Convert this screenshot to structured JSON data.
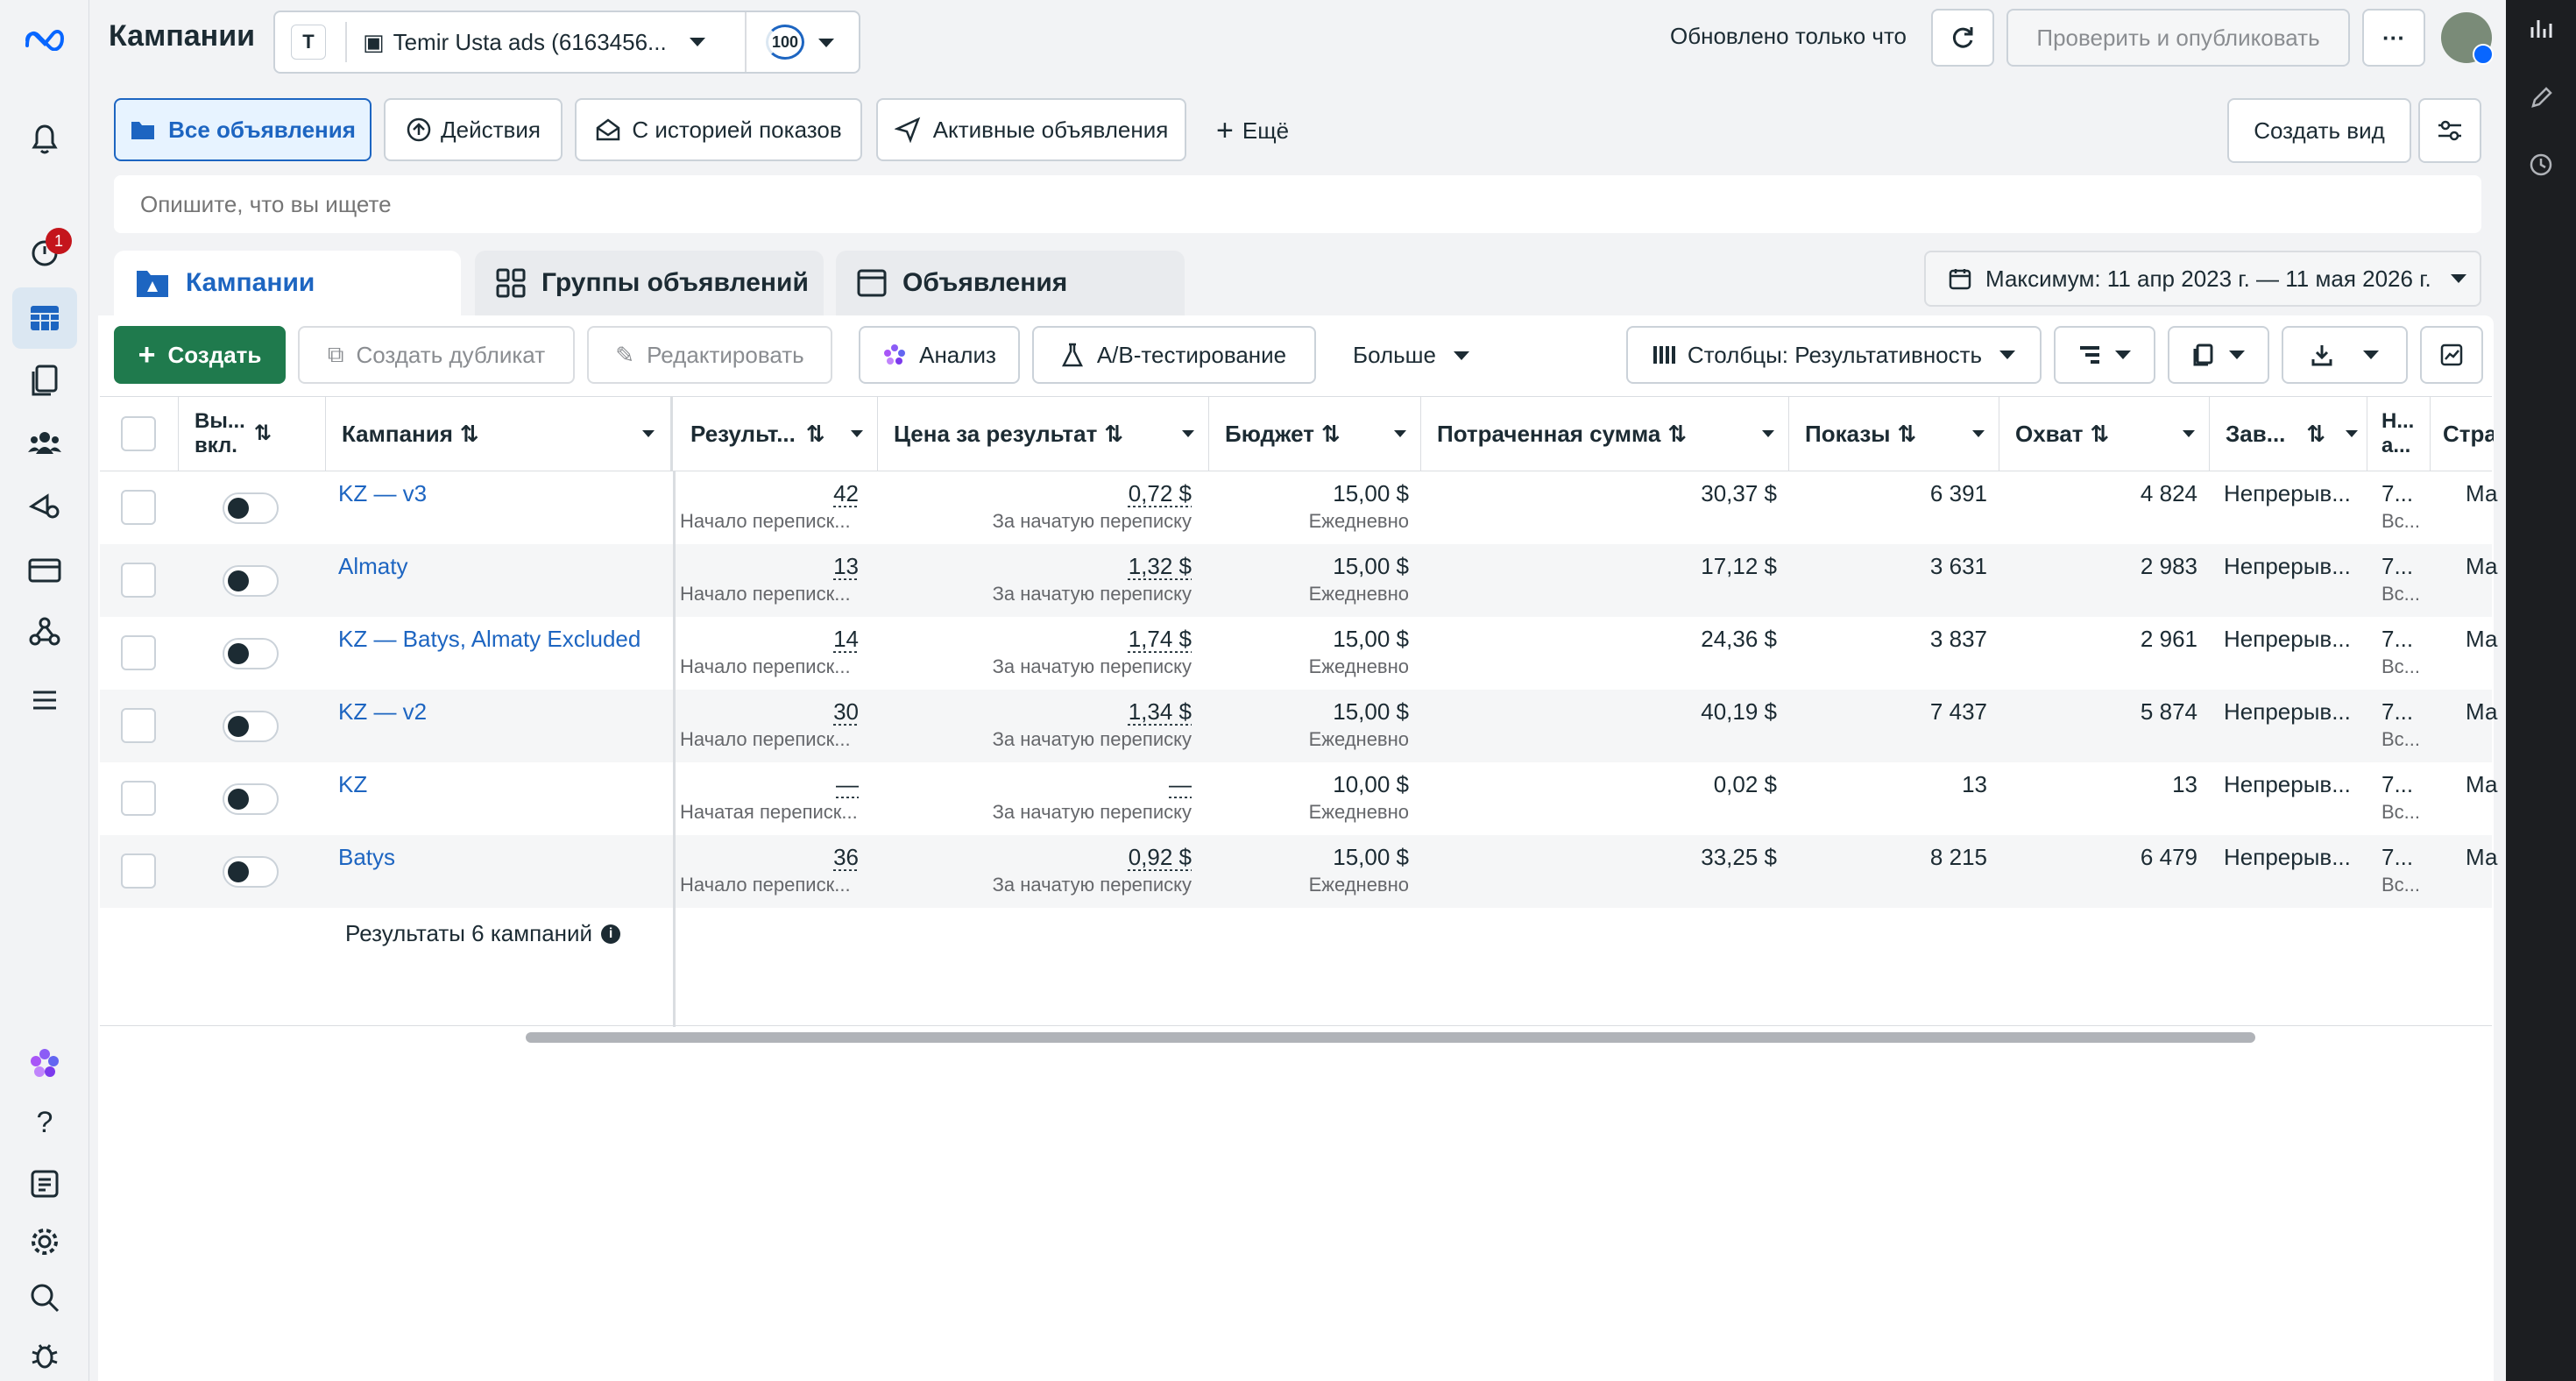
{
  "header": {
    "title": "Кампании",
    "account": "Temir Usta ads (6163456...",
    "badge": "100",
    "updated": "Обновлено только что",
    "publish": "Проверить и опубликовать",
    "more": "···"
  },
  "nav": {
    "notif_count": "1"
  },
  "filters": {
    "items": [
      "Все объявления",
      "Действия",
      "С историей показов",
      "Активные объявления"
    ],
    "more": "Ещё",
    "create_view": "Создать вид",
    "search_placeholder": "Опишите, что вы ищете"
  },
  "tabs": {
    "campaigns": "Кампании",
    "adsets": "Группы объявлений",
    "ads": "Объявления"
  },
  "date_range": "Максимум: 11 апр 2023 г. — 11 мая 2026 г.",
  "toolbar": {
    "create": "Создать",
    "duplicate": "Создать дубликат",
    "edit": "Редактировать",
    "analysis": "Анализ",
    "ab": "A/B-тестирование",
    "more": "Больше",
    "columns": "Столбцы: Результативность"
  },
  "columns": {
    "onoff_1": "Вы...",
    "onoff_2": "вкл.",
    "campaign": "Кампания",
    "results": "Результ...",
    "cost": "Цена за результат",
    "budget": "Бюджет",
    "spent": "Потраченная сумма",
    "impressions": "Показы",
    "reach": "Охват",
    "ends": "Зав...",
    "h_1": "Н...",
    "h_2": "а...",
    "page": "Стра"
  },
  "rows": [
    {
      "name": "KZ — v3",
      "results": "42",
      "results_sub": "Начало переписк...",
      "cost": "0,72 $",
      "cost_sub": "За начатую переписку",
      "budget": "15,00 $",
      "budget_sub": "Ежедневно",
      "spent": "30,37 $",
      "impressions": "6 391",
      "reach": "4 824",
      "ends": "Непрерыв...",
      "h": "7...",
      "h_sub": "Вс...",
      "page": "Ма"
    },
    {
      "name": "Almaty",
      "results": "13",
      "results_sub": "Начало переписк...",
      "cost": "1,32 $",
      "cost_sub": "За начатую переписку",
      "budget": "15,00 $",
      "budget_sub": "Ежедневно",
      "spent": "17,12 $",
      "impressions": "3 631",
      "reach": "2 983",
      "ends": "Непрерыв...",
      "h": "7...",
      "h_sub": "Вс...",
      "page": "Ма"
    },
    {
      "name": "KZ — Batys, Almaty Excluded",
      "results": "14",
      "results_sub": "Начало переписк...",
      "cost": "1,74 $",
      "cost_sub": "За начатую переписку",
      "budget": "15,00 $",
      "budget_sub": "Ежедневно",
      "spent": "24,36 $",
      "impressions": "3 837",
      "reach": "2 961",
      "ends": "Непрерыв...",
      "h": "7...",
      "h_sub": "Вс...",
      "page": "Ма"
    },
    {
      "name": "KZ — v2",
      "results": "30",
      "results_sub": "Начало переписк...",
      "cost": "1,34 $",
      "cost_sub": "За начатую переписку",
      "budget": "15,00 $",
      "budget_sub": "Ежедневно",
      "spent": "40,19 $",
      "impressions": "7 437",
      "reach": "5 874",
      "ends": "Непрерыв...",
      "h": "7...",
      "h_sub": "Вс...",
      "page": "Ма"
    },
    {
      "name": "KZ",
      "results": "—",
      "results_sub": "Начатая переписк...",
      "cost": "—",
      "cost_sub": "За начатую переписку",
      "budget": "10,00 $",
      "budget_sub": "Ежедневно",
      "spent": "0,02 $",
      "impressions": "13",
      "reach": "13",
      "ends": "Непрерыв...",
      "h": "7...",
      "h_sub": "Вс...",
      "page": "Ма"
    },
    {
      "name": "Batys",
      "results": "36",
      "results_sub": "Начало переписк...",
      "cost": "0,92 $",
      "cost_sub": "За начатую переписку",
      "budget": "15,00 $",
      "budget_sub": "Ежедневно",
      "spent": "33,25 $",
      "impressions": "8 215",
      "reach": "6 479",
      "ends": "Непрерыв...",
      "h": "7...",
      "h_sub": "Вс...",
      "page": "Ма"
    }
  ],
  "summary": "Результаты 6 кампаний",
  "colors": {
    "accent": "#1d65c1",
    "create_btn": "#1f7a4d",
    "selected_tab": "#e7f3ff"
  }
}
